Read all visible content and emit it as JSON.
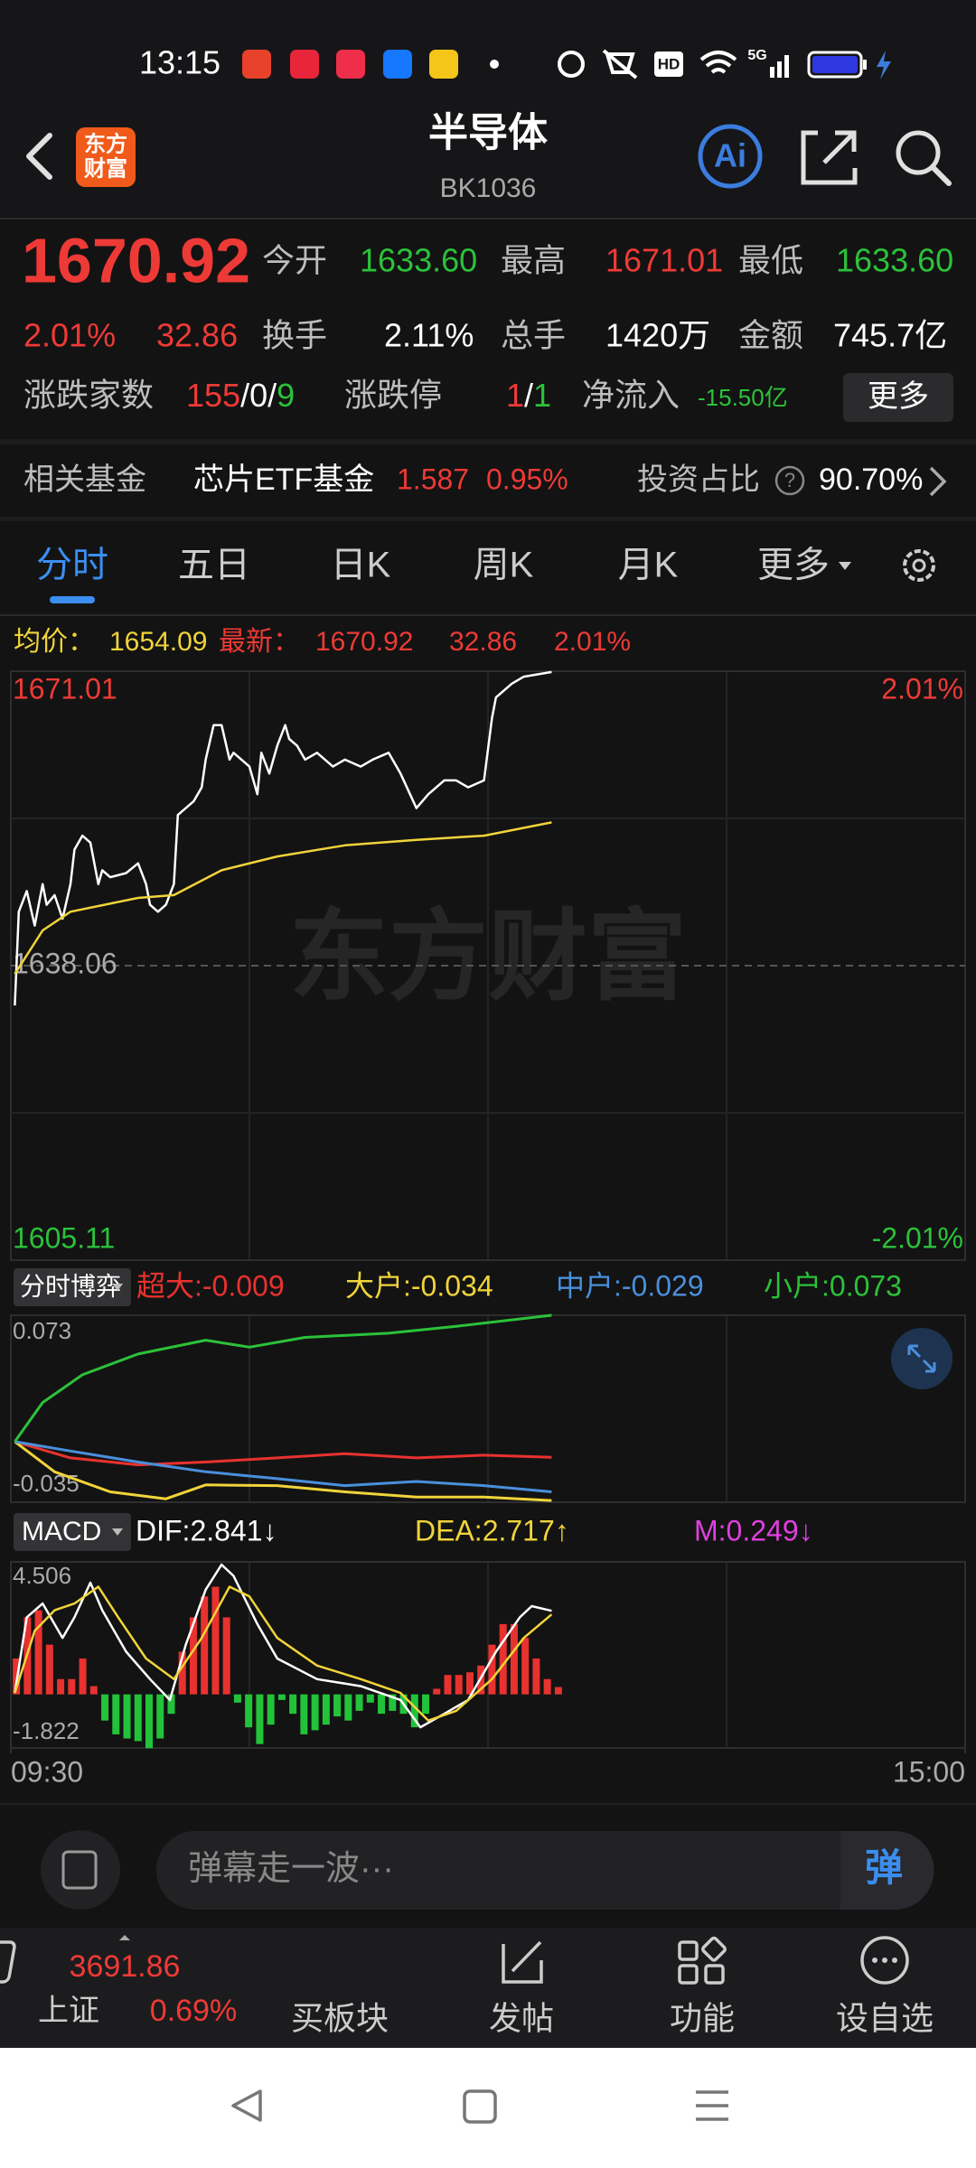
{
  "status_bar": {
    "time": "13:15",
    "hd": "HD",
    "network": "5G"
  },
  "header": {
    "logo": [
      "东方",
      "财富"
    ],
    "title": "半导体",
    "code": "BK1036",
    "ai": "Ai"
  },
  "quote": {
    "price": "1670.92",
    "change_pct": "2.01%",
    "change": "32.86",
    "stats": [
      {
        "label": "今开",
        "value": "1633.60"
      },
      {
        "label": "最高",
        "value": "1671.01"
      },
      {
        "label": "最低",
        "value": "1633.60"
      },
      {
        "label": "换手",
        "value": "2.11%"
      },
      {
        "label": "总手",
        "value": "1420万"
      },
      {
        "label": "金额",
        "value": "745.7亿"
      }
    ],
    "breadth": {
      "label": "涨跌家数",
      "up": "155",
      "sep": "/",
      "flat": "0",
      "down": "9"
    },
    "limit": {
      "label": "涨跌停",
      "up": "1",
      "sep": "/",
      "down": "1"
    },
    "net_inflow": {
      "label": "净流入",
      "value": "-15.50亿"
    },
    "more_button": "更多"
  },
  "fund": {
    "label": "相关基金",
    "name": "芯片ETF基金",
    "price": "1.587",
    "change": "0.95%",
    "ratio_label": "投资占比",
    "help": "?",
    "ratio": "90.70%"
  },
  "tabs": [
    "分时",
    "五日",
    "日K",
    "周K",
    "月K",
    "更多"
  ],
  "intraday": {
    "avg_label": "均价：",
    "avg": "1654.09",
    "last_label": "最新：",
    "last": "1670.92",
    "change": "32.86",
    "change_pct": "2.01%",
    "watermark": "东方财富",
    "chart": {
      "type": "line",
      "xlim": [
        0,
        240
      ],
      "ylim": [
        1605.11,
        1671.01
      ],
      "yticks": [
        1671.01,
        1638.06,
        1605.11
      ],
      "y2lim": [
        -2.01,
        2.01
      ],
      "y2ticks": [
        {
          "value": 2.01,
          "label": "2.01%"
        },
        {
          "value": -2.01,
          "label": "-2.01%"
        }
      ],
      "series": [
        {
          "color": "#ffffff",
          "x": [
            1,
            2,
            4,
            6,
            8,
            9,
            11,
            13,
            15,
            16,
            18,
            20,
            22,
            23,
            25,
            29,
            32,
            34,
            35,
            37,
            39,
            41,
            42,
            44,
            46,
            48,
            49,
            51,
            53,
            55,
            56,
            60,
            62,
            63,
            65,
            67,
            69,
            70,
            72,
            74,
            77,
            81,
            84,
            88,
            91,
            95,
            98,
            102,
            105,
            109,
            112,
            115,
            119,
            121,
            122,
            126,
            129,
            133,
            136
          ],
          "values": [
            1633.6,
            1644.09,
            1646.41,
            1642.55,
            1647.19,
            1644.87,
            1645.95,
            1643.32,
            1647.19,
            1651.05,
            1652.6,
            1651.83,
            1647.19,
            1648.73,
            1647.96,
            1648.42,
            1649.51,
            1647.19,
            1644.87,
            1644.09,
            1644.87,
            1647.19,
            1654.92,
            1655.69,
            1656.47,
            1658.01,
            1661.11,
            1664.98,
            1664.98,
            1661.11,
            1661.88,
            1660.34,
            1657.24,
            1661.88,
            1659.56,
            1662.66,
            1664.98,
            1663.43,
            1662.66,
            1661.11,
            1661.88,
            1660.34,
            1661.11,
            1660.34,
            1661.11,
            1661.88,
            1659.56,
            1655.69,
            1657.24,
            1658.79,
            1658.79,
            1658.01,
            1658.79,
            1665.75,
            1668.07,
            1669.62,
            1670.39,
            1670.7,
            1670.92
          ]
        },
        {
          "color": "#f0d43a",
          "x": [
            1,
            8,
            15,
            32,
            41,
            53,
            67,
            84,
            102,
            119,
            136
          ],
          "values": [
            1637.13,
            1642.0,
            1644.09,
            1645.64,
            1645.95,
            1648.73,
            1650.28,
            1651.52,
            1652.14,
            1652.6,
            1654.09
          ]
        }
      ]
    }
  },
  "flow": {
    "selector": "分时博弈",
    "chart": {
      "type": "line",
      "xlim": [
        0,
        240
      ],
      "ylim": [
        -0.035,
        0.073
      ],
      "yticks": [
        0.073,
        -0.035
      ],
      "series": [
        {
          "label": "超大:-0.009",
          "color": "#e8322f",
          "x": [
            1,
            15,
            32,
            49,
            67,
            84,
            102,
            119,
            136
          ],
          "values": [
            0,
            -0.0094,
            -0.0134,
            -0.0118,
            -0.0094,
            -0.007,
            -0.0094,
            -0.0078,
            -0.009
          ]
        },
        {
          "label": "大户:-0.034",
          "color": "#f0d43a",
          "x": [
            1,
            11,
            25,
            39,
            49,
            67,
            84,
            102,
            119,
            136
          ],
          "values": [
            0,
            -0.0174,
            -0.029,
            -0.033,
            -0.025,
            -0.0254,
            -0.029,
            -0.032,
            -0.032,
            -0.034
          ]
        },
        {
          "label": "中户:-0.029",
          "color": "#4a8fdc",
          "x": [
            1,
            15,
            32,
            49,
            67,
            84,
            102,
            119,
            136
          ],
          "values": [
            0,
            -0.0054,
            -0.0118,
            -0.0174,
            -0.0214,
            -0.0254,
            -0.023,
            -0.0254,
            -0.029
          ]
        },
        {
          "label": "小户:0.073",
          "color": "#2bc23a",
          "x": [
            1,
            8,
            18,
            32,
            49,
            60,
            74,
            95,
            112,
            136
          ],
          "values": [
            0,
            0.0226,
            0.0386,
            0.0506,
            0.0586,
            0.0546,
            0.0602,
            0.0626,
            0.0666,
            0.073
          ]
        }
      ]
    }
  },
  "macd": {
    "selector": "MACD",
    "chart": {
      "type": "line",
      "xlim": [
        0,
        240
      ],
      "xticks": [
        {
          "value": 0,
          "label": "09:30"
        },
        {
          "value": 240,
          "label": "15:00"
        }
      ],
      "ylim": [
        -1.822,
        4.506
      ],
      "yticks": [
        4.506,
        -1.822
      ],
      "series": [
        {
          "label": "DIF:2.841↓",
          "color": "#ffffff",
          "x": [
            1,
            4,
            8,
            13,
            16,
            20,
            23,
            29,
            35,
            40,
            44,
            49,
            53,
            56,
            62,
            67,
            77,
            88,
            98,
            103,
            109,
            115,
            122,
            128,
            131,
            136
          ],
          "values": [
            0.05,
            2.62,
            3.09,
            1.92,
            2.62,
            3.8,
            2.86,
            1.45,
            0.52,
            -0.19,
            1.69,
            3.56,
            4.41,
            4.03,
            2.39,
            1.22,
            0.52,
            0.28,
            -0.19,
            -1.12,
            -0.66,
            -0.19,
            1.45,
            2.62,
            3.0,
            2.841
          ]
        },
        {
          "label": "DEA:2.717↑",
          "color": "#f0d43a",
          "x": [
            1,
            6,
            11,
            16,
            22,
            27,
            34,
            41,
            48,
            55,
            60,
            67,
            77,
            88,
            98,
            105,
            112,
            121,
            129,
            136
          ],
          "values": [
            0.05,
            2.16,
            2.86,
            3.09,
            3.66,
            2.62,
            1.22,
            0.52,
            1.92,
            3.66,
            3.33,
            1.92,
            0.98,
            0.52,
            0.05,
            -0.89,
            -0.56,
            0.52,
            1.92,
            2.717
          ]
        }
      ],
      "histogram": {
        "label": "M:0.249↓",
        "color": "#e040e0",
        "up_color": "#e8322f",
        "down_color": "#22c33a",
        "values": [
          1.22,
          2.62,
          2.86,
          1.69,
          0.52,
          0.52,
          1.22,
          0.28,
          -0.89,
          -1.36,
          -1.5,
          -1.59,
          -1.83,
          -1.5,
          -0.66,
          1.45,
          2.62,
          3.33,
          3.66,
          2.62,
          -0.28,
          -1.12,
          -1.69,
          -1.03,
          -0.19,
          -0.66,
          -1.36,
          -1.22,
          -1.03,
          -0.75,
          -0.89,
          -0.56,
          -0.28,
          -0.66,
          -0.56,
          -0.66,
          -1.12,
          -0.66,
          0.19,
          0.66,
          0.66,
          0.75,
          0.98,
          1.69,
          2.39,
          2.39,
          1.92,
          1.22,
          0.52,
          0.249
        ]
      }
    }
  },
  "comment_bar": {
    "placeholder": "弹幕走一波···",
    "button": "弹"
  },
  "bottom_nav": {
    "index": {
      "value": "3691.86",
      "name": "上证",
      "change": "0.69%"
    },
    "items": [
      "买板块",
      "发帖",
      "功能",
      "设自选"
    ]
  }
}
